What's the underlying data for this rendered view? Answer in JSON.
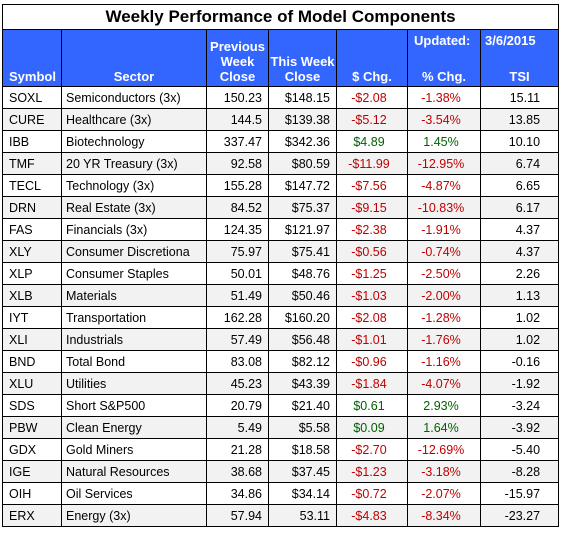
{
  "title": "Weekly Performance of Model Components",
  "updated_label": "Updated:",
  "updated_date": "3/6/2015",
  "headers": {
    "symbol": "Symbol",
    "sector": "Sector",
    "prev_close": [
      "Previous",
      "Week",
      "Close"
    ],
    "this_close": [
      "This Week",
      "Close"
    ],
    "chg": "$ Chg.",
    "pct": "% Chg.",
    "tsi": "TSI"
  },
  "rows": [
    {
      "symbol": "SOXL",
      "sector": "Semiconductors  (3x)",
      "prev": "150.23",
      "this": "$148.15",
      "chg": "-$2.08",
      "pct": "-1.38%",
      "tsi": "15.11"
    },
    {
      "symbol": "CURE",
      "sector": "Healthcare  (3x)",
      "prev": "144.5",
      "this": "$139.38",
      "chg": "-$5.12",
      "pct": "-3.54%",
      "tsi": "13.85"
    },
    {
      "symbol": "IBB",
      "sector": "Biotechnology",
      "prev": "337.47",
      "this": "$342.36",
      "chg": "$4.89",
      "pct": "1.45%",
      "tsi": "10.10"
    },
    {
      "symbol": "TMF",
      "sector": "20 YR Treasury  (3x)",
      "prev": "92.58",
      "this": "$80.59",
      "chg": "-$11.99",
      "pct": "-12.95%",
      "tsi": "6.74"
    },
    {
      "symbol": "TECL",
      "sector": "Technology  (3x)",
      "prev": "155.28",
      "this": "$147.72",
      "chg": "-$7.56",
      "pct": "-4.87%",
      "tsi": "6.65"
    },
    {
      "symbol": "DRN",
      "sector": "Real Estate  (3x)",
      "prev": "84.52",
      "this": "$75.37",
      "chg": "-$9.15",
      "pct": "-10.83%",
      "tsi": "6.17"
    },
    {
      "symbol": "FAS",
      "sector": "Financials  (3x)",
      "prev": "124.35",
      "this": "$121.97",
      "chg": "-$2.38",
      "pct": "-1.91%",
      "tsi": "4.37"
    },
    {
      "symbol": "XLY",
      "sector": "Consumer Discretiona",
      "prev": "75.97",
      "this": "$75.41",
      "chg": "-$0.56",
      "pct": "-0.74%",
      "tsi": "4.37"
    },
    {
      "symbol": "XLP",
      "sector": "Consumer Staples",
      "prev": "50.01",
      "this": "$48.76",
      "chg": "-$1.25",
      "pct": "-2.50%",
      "tsi": "2.26"
    },
    {
      "symbol": "XLB",
      "sector": "Materials",
      "prev": "51.49",
      "this": "$50.46",
      "chg": "-$1.03",
      "pct": "-2.00%",
      "tsi": "1.13"
    },
    {
      "symbol": "IYT",
      "sector": "Transportation",
      "prev": "162.28",
      "this": "$160.20",
      "chg": "-$2.08",
      "pct": "-1.28%",
      "tsi": "1.02"
    },
    {
      "symbol": "XLI",
      "sector": "Industrials",
      "prev": "57.49",
      "this": "$56.48",
      "chg": "-$1.01",
      "pct": "-1.76%",
      "tsi": "1.02"
    },
    {
      "symbol": "BND",
      "sector": "Total Bond",
      "prev": "83.08",
      "this": "$82.12",
      "chg": "-$0.96",
      "pct": "-1.16%",
      "tsi": "-0.16"
    },
    {
      "symbol": "XLU",
      "sector": "Utilities",
      "prev": "45.23",
      "this": "$43.39",
      "chg": "-$1.84",
      "pct": "-4.07%",
      "tsi": "-1.92"
    },
    {
      "symbol": "SDS",
      "sector": "Short S&P500",
      "prev": "20.79",
      "this": "$21.40",
      "chg": "$0.61",
      "pct": "2.93%",
      "tsi": "-3.24"
    },
    {
      "symbol": "PBW",
      "sector": "Clean Energy",
      "prev": "5.49",
      "this": "$5.58",
      "chg": "$0.09",
      "pct": "1.64%",
      "tsi": "-3.92"
    },
    {
      "symbol": "GDX",
      "sector": "Gold Miners",
      "prev": "21.28",
      "this": "$18.58",
      "chg": "-$2.70",
      "pct": "-12.69%",
      "tsi": "-5.40"
    },
    {
      "symbol": "IGE",
      "sector": "Natural Resources",
      "prev": "38.68",
      "this": "$37.45",
      "chg": "-$1.23",
      "pct": "-3.18%",
      "tsi": "-8.28"
    },
    {
      "symbol": "OIH",
      "sector": "Oil Services",
      "prev": "34.86",
      "this": "$34.14",
      "chg": "-$0.72",
      "pct": "-2.07%",
      "tsi": "-15.97"
    },
    {
      "symbol": "ERX",
      "sector": "Energy  (3x)",
      "prev": "57.94",
      "this": "53.11",
      "chg": "-$4.83",
      "pct": "-8.34%",
      "tsi": "-23.27"
    }
  ],
  "colors": {
    "header_bg": "#3366ff",
    "header_text": "#ffffff",
    "negative": "#c00000",
    "positive": "#006100"
  }
}
